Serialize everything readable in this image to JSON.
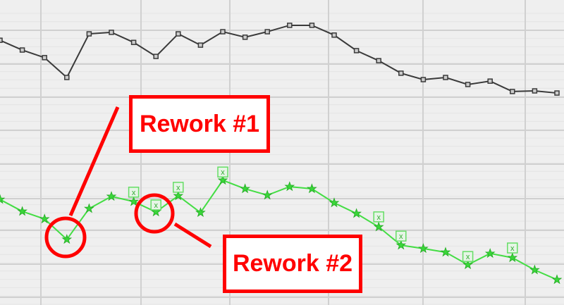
{
  "chart_data": {
    "type": "line",
    "ylim": [
      0,
      100
    ],
    "grid": true,
    "x": [
      1,
      2,
      3,
      4,
      5,
      6,
      7,
      8,
      9,
      10,
      11,
      12,
      13,
      14,
      15,
      16,
      17,
      18,
      19,
      20,
      21,
      22,
      23,
      24,
      25,
      26
    ],
    "series": [
      {
        "color": "#3a3a3a",
        "marker": "square",
        "values": [
          86.8,
          83.6,
          81.1,
          74.6,
          88.9,
          89.4,
          86.1,
          81.5,
          88.9,
          85.2,
          89.6,
          87.8,
          89.6,
          91.7,
          91.7,
          88.5,
          83.4,
          80.1,
          76.0,
          73.9,
          74.6,
          72.3,
          73.4,
          70.0,
          70.2,
          69.5
        ]
      },
      {
        "color": "#44dd44",
        "marker": "star",
        "values": [
          34.6,
          30.7,
          28.2,
          21.5,
          31.6,
          35.6,
          33.9,
          30.5,
          35.8,
          30.3,
          40.9,
          38.1,
          36.0,
          38.8,
          38.1,
          33.5,
          30.0,
          25.6,
          19.6,
          18.5,
          17.3,
          13.2,
          16.9,
          15.5,
          11.5,
          8.3
        ]
      }
    ],
    "x_markers": {
      "color": "#66dd66",
      "points": [
        {
          "x": 7,
          "y": 37.0
        },
        {
          "x": 8,
          "y": 32.8
        },
        {
          "x": 9,
          "y": 38.6
        },
        {
          "x": 11,
          "y": 43.6
        },
        {
          "x": 18,
          "y": 28.9
        },
        {
          "x": 19,
          "y": 22.6
        },
        {
          "x": 22,
          "y": 15.9
        },
        {
          "x": 24,
          "y": 18.7
        }
      ]
    },
    "annotations": [
      {
        "label": "Rework #1",
        "target_x": 4
      },
      {
        "label": "Rework #2",
        "target_x": 8
      }
    ],
    "annotation_color": "#ff0000"
  }
}
